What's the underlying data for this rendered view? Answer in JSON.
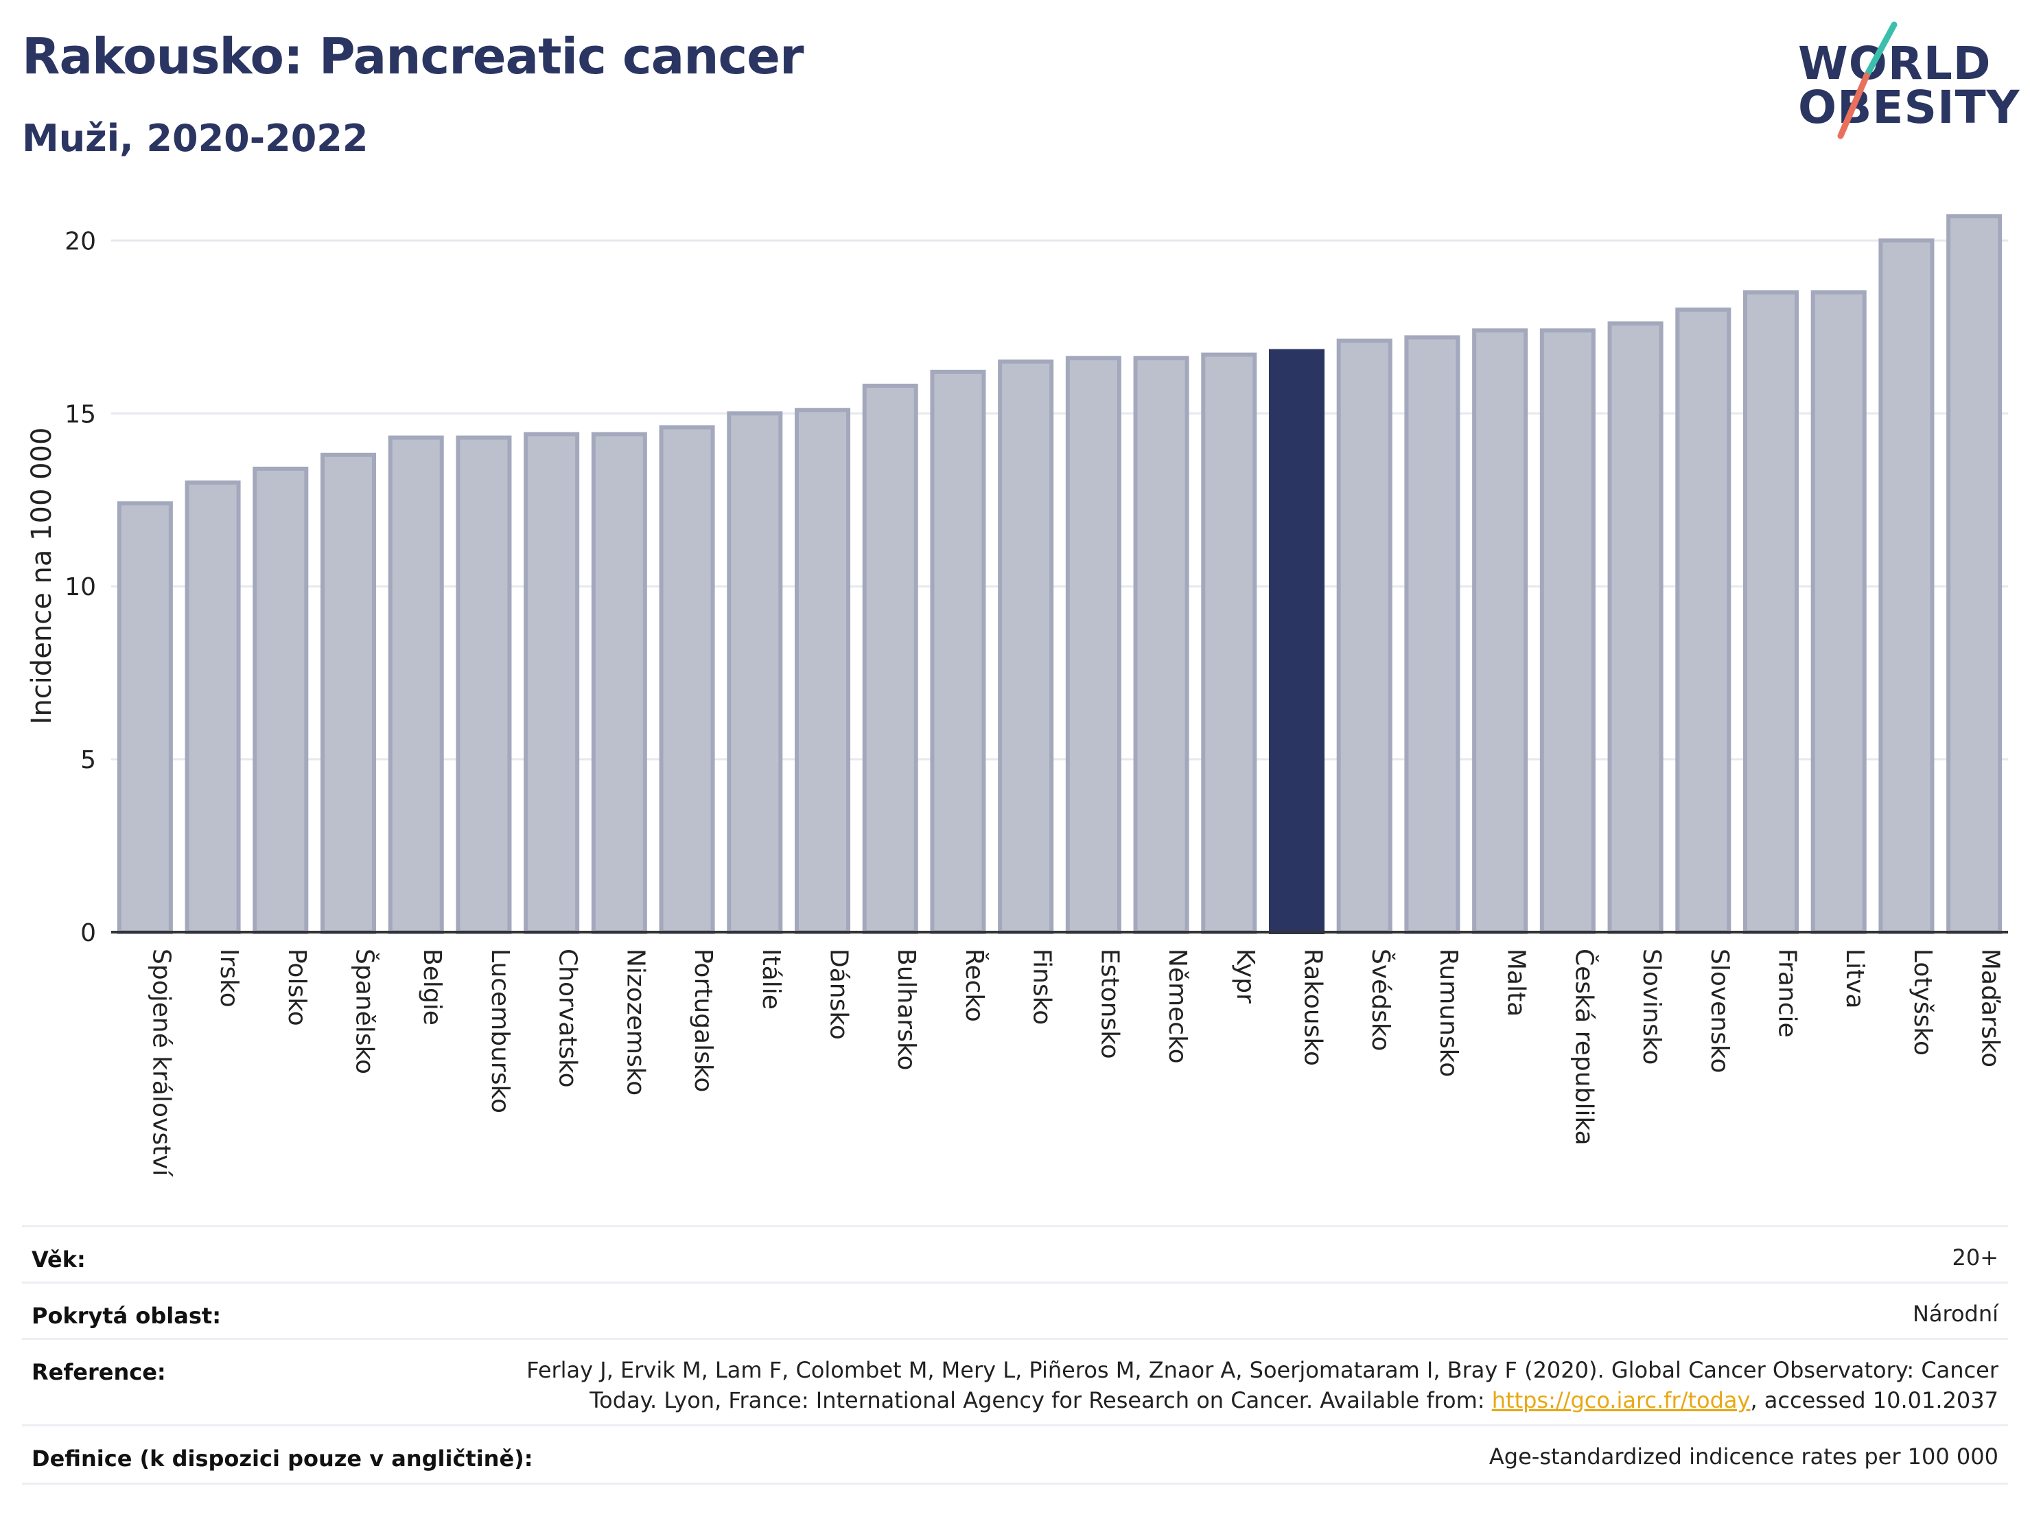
{
  "header": {
    "title": "Rakousko: Pancreatic cancer",
    "subtitle": "Muži, 2020-2022"
  },
  "logo": {
    "line1": "WORLD",
    "line2": "OBESITY",
    "text": "WORLD OBESITY"
  },
  "colors": {
    "bar": "#bcc0cd",
    "bar_border": "#a3a8bc",
    "highlight": "#2b3562",
    "title": "#2b3562",
    "logo_teal": "#3bbfad",
    "logo_coral": "#e8705c",
    "link": "#e8a812"
  },
  "chart_data": {
    "type": "bar",
    "ylabel": "Incidence na 100 000",
    "xlabel": "",
    "ylim": [
      0,
      21
    ],
    "yticks": [
      0,
      5,
      10,
      15,
      20
    ],
    "grid": true,
    "highlight": "Rakousko",
    "categories": [
      "Spojené království",
      "Irsko",
      "Polsko",
      "Španělsko",
      "Belgie",
      "Lucembursko",
      "Chorvatsko",
      "Nizozemsko",
      "Portugalsko",
      "Itálie",
      "Dánsko",
      "Bulharsko",
      "Řecko",
      "Finsko",
      "Estonsko",
      "Německo",
      "Kypr",
      "Rakousko",
      "Švédsko",
      "Rumunsko",
      "Malta",
      "Česká republika",
      "Slovinsko",
      "Slovensko",
      "Francie",
      "Litva",
      "Lotyšsko",
      "Maďarsko"
    ],
    "values": [
      12.4,
      13.0,
      13.4,
      13.8,
      14.3,
      14.3,
      14.4,
      14.4,
      14.6,
      15.0,
      15.1,
      15.8,
      16.2,
      16.5,
      16.6,
      16.6,
      16.7,
      16.8,
      17.1,
      17.2,
      17.4,
      17.4,
      17.6,
      18.0,
      18.5,
      18.5,
      20.0,
      20.7
    ]
  },
  "info": {
    "age_label": "Věk:",
    "age_value": "20+",
    "area_label": "Pokrytá oblast:",
    "area_value": "Národní",
    "reference_label": "Reference:",
    "reference_line1": "Ferlay J, Ervik M, Lam F, Colombet M, Mery L, Piñeros M, Znaor A, Soerjomataram I, Bray F (2020). Global Cancer Observatory: Cancer",
    "reference_line2_pre": "Today. Lyon, France: International Agency for Research on Cancer. Available from: ",
    "reference_link": "https://gco.iarc.fr/today",
    "reference_line2_post": ", accessed 10.01.2037",
    "definition_label": "Definice (k dispozici pouze v angličtině):",
    "definition_value": "Age-standardized indicence rates per 100 000"
  }
}
